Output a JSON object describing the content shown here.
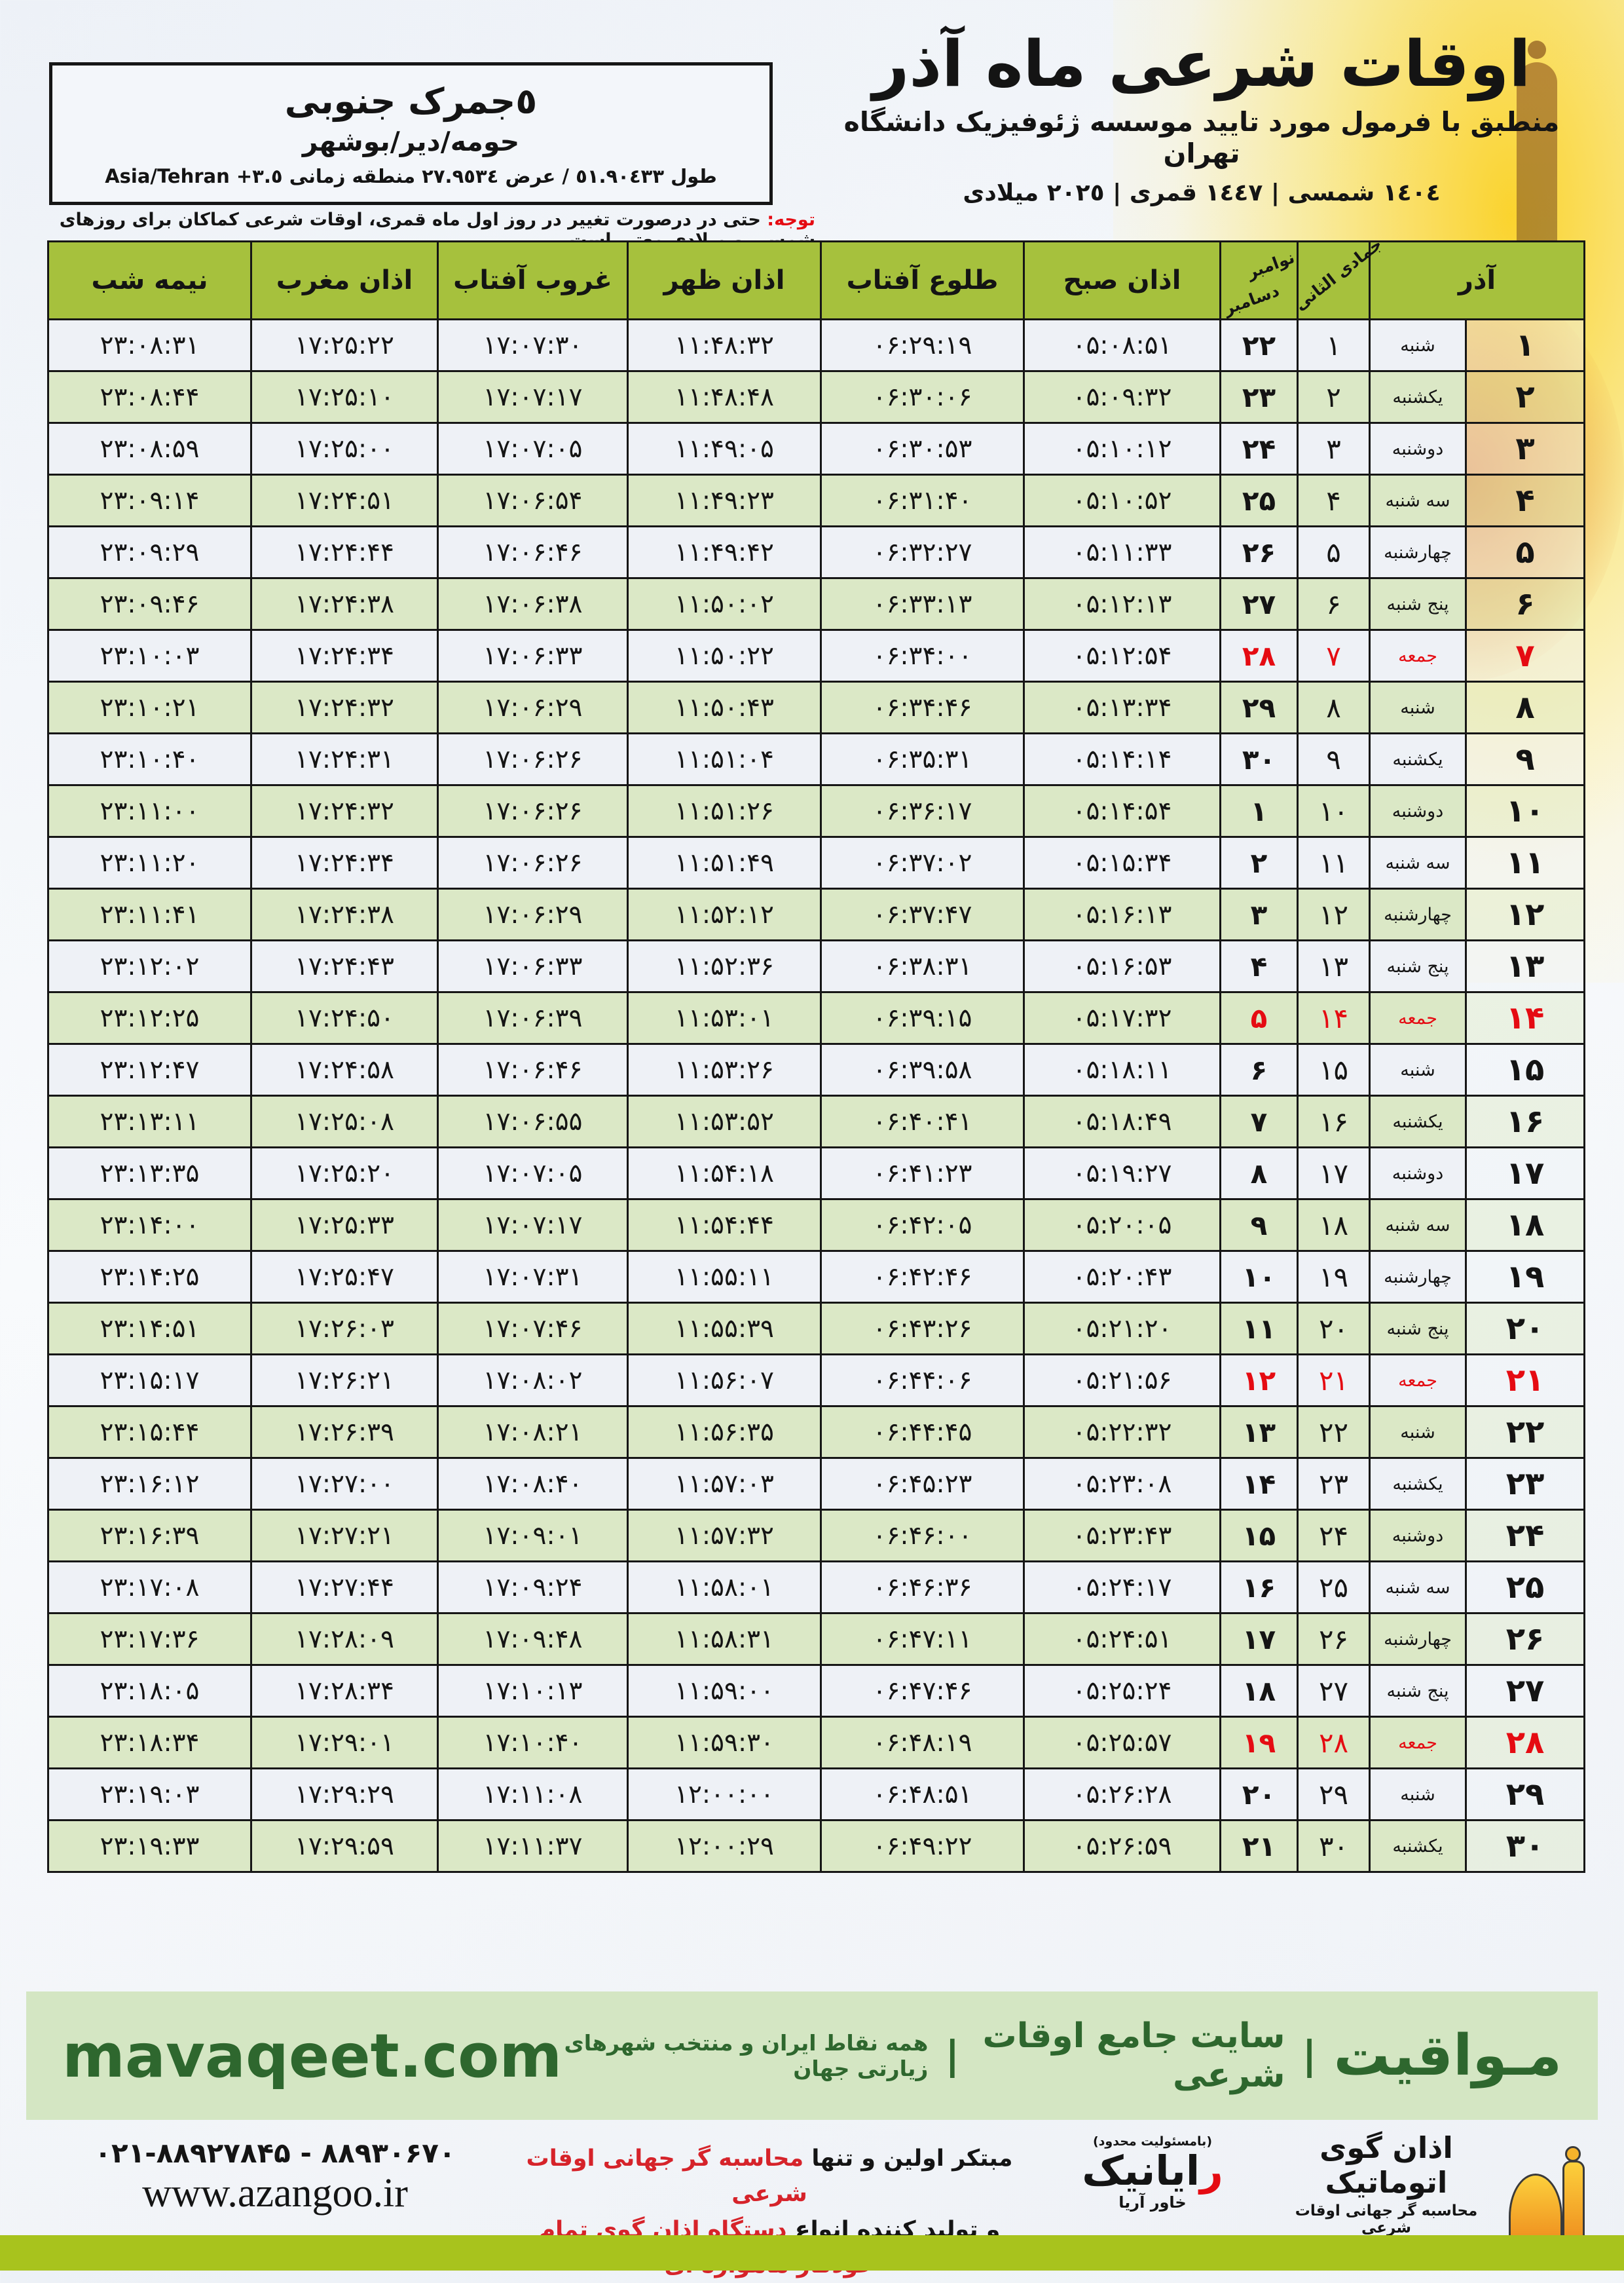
{
  "location_box": {
    "name": "٥جمرک جنوبی",
    "region": "حومه/دیر/بوشهر",
    "coords_text": "طول ٥١.٩٠٤٣٣ / عرض ٢٧.٩٥٣٤ منطقه زمانی",
    "coords_tz": "Asia/Tehran +٣.٥"
  },
  "header": {
    "title": "اوقات شرعی ماه آذر",
    "subtitle": "منطبق با فرمول مورد تایید موسسه ژئوفیزیک دانشگاه تهران",
    "years": "١٤٠٤ شمسی | ١٤٤٧ قمری | ٢٠٢٥ میلادی"
  },
  "note": {
    "label": "توجه:",
    "text": " حتی در درصورت تغییر در روز اول ماه قمری، اوقات شرعی کماکان برای روزهای شمسی و میلادی معتبر است."
  },
  "table": {
    "headers": {
      "azar": "آذر",
      "lunar": "جمادی الثانی",
      "greg_top": "نوامبر",
      "greg_bottom": "دسامبر",
      "sobh": "اذان صبح",
      "tolu": "طلوع آفتاب",
      "zohr": "اذان ظهر",
      "ghorub": "غروب آفتاب",
      "maghreb": "اذان مغرب",
      "nimeshab": "نیمه شب"
    },
    "rows": [
      {
        "azar": 1,
        "weekday": "شنبه",
        "lunar": 1,
        "greg": 22,
        "sobh": "05:08:51",
        "tolu": "06:29:19",
        "zohr": "11:48:32",
        "ghorub": "17:07:30",
        "maghreb": "17:25:22",
        "nimeshab": "23:08:31",
        "friday": false
      },
      {
        "azar": 2,
        "weekday": "یکشنبه",
        "lunar": 2,
        "greg": 23,
        "sobh": "05:09:32",
        "tolu": "06:30:06",
        "zohr": "11:48:48",
        "ghorub": "17:07:17",
        "maghreb": "17:25:10",
        "nimeshab": "23:08:44",
        "friday": false
      },
      {
        "azar": 3,
        "weekday": "دوشنبه",
        "lunar": 3,
        "greg": 24,
        "sobh": "05:10:12",
        "tolu": "06:30:53",
        "zohr": "11:49:05",
        "ghorub": "17:07:05",
        "maghreb": "17:25:00",
        "nimeshab": "23:08:59",
        "friday": false
      },
      {
        "azar": 4,
        "weekday": "سه شنبه",
        "lunar": 4,
        "greg": 25,
        "sobh": "05:10:52",
        "tolu": "06:31:40",
        "zohr": "11:49:23",
        "ghorub": "17:06:54",
        "maghreb": "17:24:51",
        "nimeshab": "23:09:14",
        "friday": false
      },
      {
        "azar": 5,
        "weekday": "چهارشنبه",
        "lunar": 5,
        "greg": 26,
        "sobh": "05:11:33",
        "tolu": "06:32:27",
        "zohr": "11:49:42",
        "ghorub": "17:06:46",
        "maghreb": "17:24:44",
        "nimeshab": "23:09:29",
        "friday": false
      },
      {
        "azar": 6,
        "weekday": "پنج شنبه",
        "lunar": 6,
        "greg": 27,
        "sobh": "05:12:13",
        "tolu": "06:33:13",
        "zohr": "11:50:02",
        "ghorub": "17:06:38",
        "maghreb": "17:24:38",
        "nimeshab": "23:09:46",
        "friday": false
      },
      {
        "azar": 7,
        "weekday": "جمعه",
        "lunar": 7,
        "greg": 28,
        "sobh": "05:12:54",
        "tolu": "06:34:00",
        "zohr": "11:50:22",
        "ghorub": "17:06:33",
        "maghreb": "17:24:34",
        "nimeshab": "23:10:03",
        "friday": true
      },
      {
        "azar": 8,
        "weekday": "شنبه",
        "lunar": 8,
        "greg": 29,
        "sobh": "05:13:34",
        "tolu": "06:34:46",
        "zohr": "11:50:43",
        "ghorub": "17:06:29",
        "maghreb": "17:24:32",
        "nimeshab": "23:10:21",
        "friday": false
      },
      {
        "azar": 9,
        "weekday": "یکشنبه",
        "lunar": 9,
        "greg": 30,
        "sobh": "05:14:14",
        "tolu": "06:35:31",
        "zohr": "11:51:04",
        "ghorub": "17:06:26",
        "maghreb": "17:24:31",
        "nimeshab": "23:10:40",
        "friday": false
      },
      {
        "azar": 10,
        "weekday": "دوشنبه",
        "lunar": 10,
        "greg": 1,
        "sobh": "05:14:54",
        "tolu": "06:36:17",
        "zohr": "11:51:26",
        "ghorub": "17:06:26",
        "maghreb": "17:24:32",
        "nimeshab": "23:11:00",
        "friday": false
      },
      {
        "azar": 11,
        "weekday": "سه شنبه",
        "lunar": 11,
        "greg": 2,
        "sobh": "05:15:34",
        "tolu": "06:37:02",
        "zohr": "11:51:49",
        "ghorub": "17:06:26",
        "maghreb": "17:24:34",
        "nimeshab": "23:11:20",
        "friday": false
      },
      {
        "azar": 12,
        "weekday": "چهارشنبه",
        "lunar": 12,
        "greg": 3,
        "sobh": "05:16:13",
        "tolu": "06:37:47",
        "zohr": "11:52:12",
        "ghorub": "17:06:29",
        "maghreb": "17:24:38",
        "nimeshab": "23:11:41",
        "friday": false
      },
      {
        "azar": 13,
        "weekday": "پنج شنبه",
        "lunar": 13,
        "greg": 4,
        "sobh": "05:16:53",
        "tolu": "06:38:31",
        "zohr": "11:52:36",
        "ghorub": "17:06:33",
        "maghreb": "17:24:43",
        "nimeshab": "23:12:02",
        "friday": false
      },
      {
        "azar": 14,
        "weekday": "جمعه",
        "lunar": 14,
        "greg": 5,
        "sobh": "05:17:32",
        "tolu": "06:39:15",
        "zohr": "11:53:01",
        "ghorub": "17:06:39",
        "maghreb": "17:24:50",
        "nimeshab": "23:12:25",
        "friday": true
      },
      {
        "azar": 15,
        "weekday": "شنبه",
        "lunar": 15,
        "greg": 6,
        "sobh": "05:18:11",
        "tolu": "06:39:58",
        "zohr": "11:53:26",
        "ghorub": "17:06:46",
        "maghreb": "17:24:58",
        "nimeshab": "23:12:47",
        "friday": false
      },
      {
        "azar": 16,
        "weekday": "یکشنبه",
        "lunar": 16,
        "greg": 7,
        "sobh": "05:18:49",
        "tolu": "06:40:41",
        "zohr": "11:53:52",
        "ghorub": "17:06:55",
        "maghreb": "17:25:08",
        "nimeshab": "23:13:11",
        "friday": false
      },
      {
        "azar": 17,
        "weekday": "دوشنبه",
        "lunar": 17,
        "greg": 8,
        "sobh": "05:19:27",
        "tolu": "06:41:23",
        "zohr": "11:54:18",
        "ghorub": "17:07:05",
        "maghreb": "17:25:20",
        "nimeshab": "23:13:35",
        "friday": false
      },
      {
        "azar": 18,
        "weekday": "سه شنبه",
        "lunar": 18,
        "greg": 9,
        "sobh": "05:20:05",
        "tolu": "06:42:05",
        "zohr": "11:54:44",
        "ghorub": "17:07:17",
        "maghreb": "17:25:33",
        "nimeshab": "23:14:00",
        "friday": false
      },
      {
        "azar": 19,
        "weekday": "چهارشنبه",
        "lunar": 19,
        "greg": 10,
        "sobh": "05:20:43",
        "tolu": "06:42:46",
        "zohr": "11:55:11",
        "ghorub": "17:07:31",
        "maghreb": "17:25:47",
        "nimeshab": "23:14:25",
        "friday": false
      },
      {
        "azar": 20,
        "weekday": "پنج شنبه",
        "lunar": 20,
        "greg": 11,
        "sobh": "05:21:20",
        "tolu": "06:43:26",
        "zohr": "11:55:39",
        "ghorub": "17:07:46",
        "maghreb": "17:26:03",
        "nimeshab": "23:14:51",
        "friday": false
      },
      {
        "azar": 21,
        "weekday": "جمعه",
        "lunar": 21,
        "greg": 12,
        "sobh": "05:21:56",
        "tolu": "06:44:06",
        "zohr": "11:56:07",
        "ghorub": "17:08:02",
        "maghreb": "17:26:21",
        "nimeshab": "23:15:17",
        "friday": true
      },
      {
        "azar": 22,
        "weekday": "شنبه",
        "lunar": 22,
        "greg": 13,
        "sobh": "05:22:32",
        "tolu": "06:44:45",
        "zohr": "11:56:35",
        "ghorub": "17:08:21",
        "maghreb": "17:26:39",
        "nimeshab": "23:15:44",
        "friday": false
      },
      {
        "azar": 23,
        "weekday": "یکشنبه",
        "lunar": 23,
        "greg": 14,
        "sobh": "05:23:08",
        "tolu": "06:45:23",
        "zohr": "11:57:03",
        "ghorub": "17:08:40",
        "maghreb": "17:27:00",
        "nimeshab": "23:16:12",
        "friday": false
      },
      {
        "azar": 24,
        "weekday": "دوشنبه",
        "lunar": 24,
        "greg": 15,
        "sobh": "05:23:43",
        "tolu": "06:46:00",
        "zohr": "11:57:32",
        "ghorub": "17:09:01",
        "maghreb": "17:27:21",
        "nimeshab": "23:16:39",
        "friday": false
      },
      {
        "azar": 25,
        "weekday": "سه شنبه",
        "lunar": 25,
        "greg": 16,
        "sobh": "05:24:17",
        "tolu": "06:46:36",
        "zohr": "11:58:01",
        "ghorub": "17:09:24",
        "maghreb": "17:27:44",
        "nimeshab": "23:17:08",
        "friday": false
      },
      {
        "azar": 26,
        "weekday": "چهارشنبه",
        "lunar": 26,
        "greg": 17,
        "sobh": "05:24:51",
        "tolu": "06:47:11",
        "zohr": "11:58:31",
        "ghorub": "17:09:48",
        "maghreb": "17:28:09",
        "nimeshab": "23:17:36",
        "friday": false
      },
      {
        "azar": 27,
        "weekday": "پنج شنبه",
        "lunar": 27,
        "greg": 18,
        "sobh": "05:25:24",
        "tolu": "06:47:46",
        "zohr": "11:59:00",
        "ghorub": "17:10:13",
        "maghreb": "17:28:34",
        "nimeshab": "23:18:05",
        "friday": false
      },
      {
        "azar": 28,
        "weekday": "جمعه",
        "lunar": 28,
        "greg": 19,
        "sobh": "05:25:57",
        "tolu": "06:48:19",
        "zohr": "11:59:30",
        "ghorub": "17:10:40",
        "maghreb": "17:29:01",
        "nimeshab": "23:18:34",
        "friday": true
      },
      {
        "azar": 29,
        "weekday": "شنبه",
        "lunar": 29,
        "greg": 20,
        "sobh": "05:26:28",
        "tolu": "06:48:51",
        "zohr": "12:00:00",
        "ghorub": "17:11:08",
        "maghreb": "17:29:29",
        "nimeshab": "23:19:03",
        "friday": false
      },
      {
        "azar": 30,
        "weekday": "یکشنبه",
        "lunar": 30,
        "greg": 21,
        "sobh": "05:26:59",
        "tolu": "06:49:22",
        "zohr": "12:00:29",
        "ghorub": "17:11:37",
        "maghreb": "17:29:59",
        "nimeshab": "23:19:33",
        "friday": false
      }
    ]
  },
  "footer_bar": {
    "site_en": "mavaqeet.com",
    "brand": "مـواقیت",
    "sep": "|",
    "desc1": "سایت جامع اوقات شرعی",
    "desc2": "همه نقاط ایران و منتخب شهرهای زیارتی جهان"
  },
  "bottom": {
    "phone": "۰۲۱-۸۸۹۲۷۸۴۵ - ۸۸۹۳۰۶۷۰",
    "website": "www.azangoo.ir",
    "tagline1_black": "مبتکر اولین و تنها ",
    "tagline1_red": "محاسبه گر جهانی اوقات شرعی",
    "tagline2_black": "و تولید کننده انواع ",
    "tagline2_red": "دستگاه اذان گوی تمام خودکار ماهواره ای",
    "rayanik": {
      "top": "(بامسئولیت محدود)",
      "initial": "ر",
      "rest": "ایانیک",
      "sub": "خاور آریا"
    },
    "azangoo": {
      "name": "اذان گوی اتوماتیک",
      "tagline": "محاسبه گر جهانی اوقات شرعی",
      "latin_a": "a",
      "latin_rest": "zangoo"
    }
  },
  "colors": {
    "header_green": "#a6c13d",
    "row_green": "#dbe8c6",
    "row_light": "#eef1f6",
    "friday_red": "#e50b12",
    "footer_bg": "#d4e6c3",
    "footer_text": "#2e672e",
    "bottom_bar": "#a8c31d",
    "logo_orange": "#ef8f1f"
  }
}
